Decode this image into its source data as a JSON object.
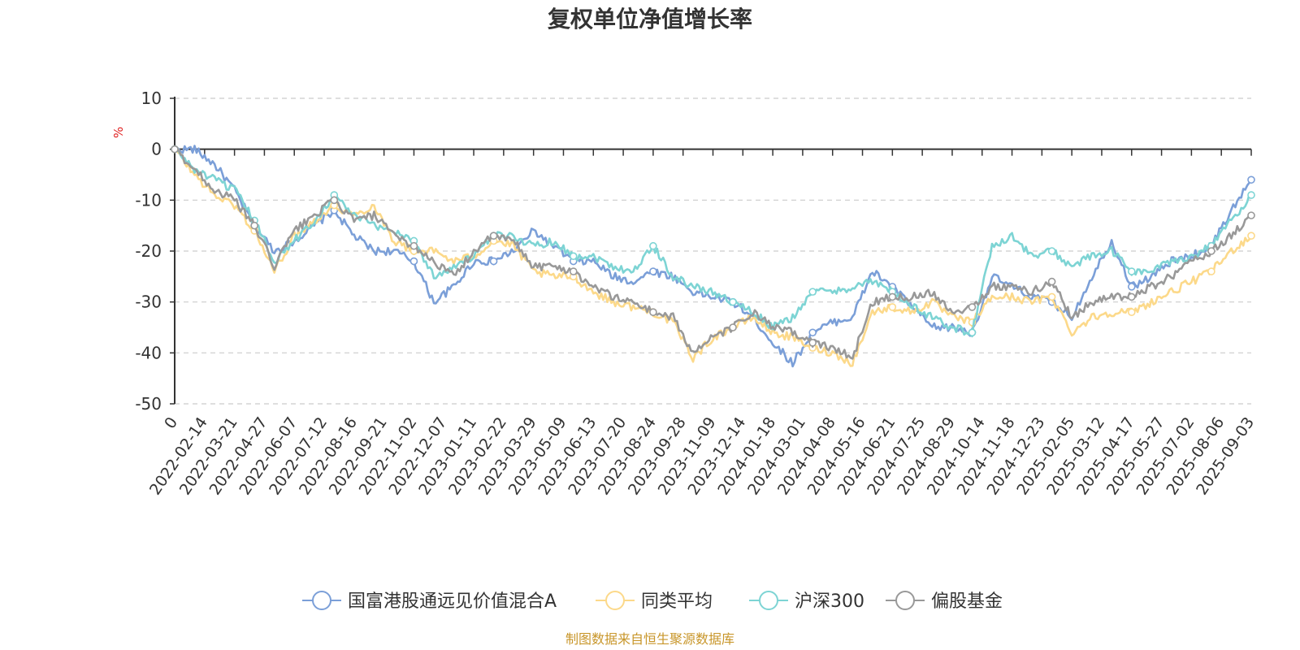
{
  "chart_data": {
    "type": "line",
    "title": "复权单位净值增长率",
    "ylabel": "%",
    "ylim": [
      -50,
      10
    ],
    "yticks": [
      10,
      0,
      -10,
      -20,
      -30,
      -40,
      -50
    ],
    "x_tick_labels": [
      "0",
      "2022-02-14",
      "2022-03-21",
      "2022-04-27",
      "2022-06-07",
      "2022-07-12",
      "2022-08-16",
      "2022-09-21",
      "2022-11-02",
      "2022-12-07",
      "2023-01-11",
      "2023-02-22",
      "2023-03-29",
      "2023-05-09",
      "2023-06-13",
      "2023-07-20",
      "2023-08-24",
      "2023-09-28",
      "2023-11-09",
      "2023-12-14",
      "2024-01-18",
      "2024-03-01",
      "2024-04-08",
      "2024-05-16",
      "2024-06-21",
      "2024-07-25",
      "2024-08-29",
      "2024-10-14",
      "2024-11-18",
      "2024-12-23",
      "2025-02-05",
      "2025-03-12",
      "2025-04-17",
      "2025-05-27",
      "2025-07-02",
      "2025-08-06",
      "2025-09-03"
    ],
    "grid": "dashed horizontal",
    "legend_position": "bottom",
    "series": [
      {
        "name": "国富港股通远见价值混合A",
        "color": "#7b9fd8",
        "values": [
          0,
          0,
          -3,
          -8,
          -15,
          -20,
          -18,
          -15,
          -12,
          -17,
          -20,
          -20,
          -22,
          -30,
          -27,
          -22,
          -22,
          -20,
          -16,
          -19,
          -22,
          -22,
          -25,
          -26,
          -24,
          -25,
          -28,
          -29,
          -30,
          -33,
          -38,
          -42,
          -36,
          -34,
          -33,
          -24,
          -27,
          -31,
          -35,
          -35,
          -36,
          -25,
          -27,
          -29,
          -30,
          -33,
          -25,
          -18,
          -27,
          -25,
          -22,
          -21,
          -19,
          -12,
          -6
        ]
      },
      {
        "name": "同类平均",
        "color": "#fcd98a",
        "values": [
          0,
          -5,
          -9,
          -11,
          -16,
          -24,
          -17,
          -14,
          -11,
          -13,
          -11,
          -18,
          -20,
          -20,
          -22,
          -21,
          -18,
          -19,
          -24,
          -25,
          -25,
          -28,
          -30,
          -31,
          -32,
          -34,
          -41,
          -37,
          -35,
          -33,
          -36,
          -37,
          -39,
          -40,
          -42,
          -32,
          -31,
          -32,
          -30,
          -33,
          -34,
          -29,
          -29,
          -30,
          -29,
          -36,
          -33,
          -32,
          -32,
          -30,
          -28,
          -26,
          -24,
          -20,
          -17
        ]
      },
      {
        "name": "沪深300",
        "color": "#7dd4d4",
        "values": [
          0,
          -4,
          -6,
          -8,
          -14,
          -22,
          -18,
          -14,
          -9,
          -13,
          -15,
          -16,
          -18,
          -25,
          -23,
          -21,
          -17,
          -17,
          -19,
          -18,
          -21,
          -21,
          -23,
          -24,
          -19,
          -25,
          -27,
          -28,
          -30,
          -32,
          -35,
          -33,
          -28,
          -28,
          -27,
          -26,
          -28,
          -31,
          -33,
          -35,
          -36,
          -19,
          -17,
          -21,
          -20,
          -23,
          -21,
          -20,
          -24,
          -24,
          -22,
          -21,
          -19,
          -14,
          -9
        ]
      },
      {
        "name": "偏股基金",
        "color": "#999999",
        "values": [
          0,
          -4,
          -8,
          -10,
          -15,
          -23,
          -16,
          -13,
          -10,
          -14,
          -13,
          -17,
          -19,
          -22,
          -25,
          -20,
          -17,
          -18,
          -23,
          -23,
          -24,
          -27,
          -29,
          -30,
          -32,
          -33,
          -40,
          -37,
          -35,
          -32,
          -35,
          -36,
          -38,
          -39,
          -41,
          -30,
          -29,
          -29,
          -28,
          -32,
          -31,
          -27,
          -27,
          -28,
          -26,
          -33,
          -30,
          -29,
          -29,
          -27,
          -25,
          -22,
          -20,
          -17,
          -13
        ]
      }
    ]
  },
  "source_note": "制图数据来自恒生聚源数据库"
}
